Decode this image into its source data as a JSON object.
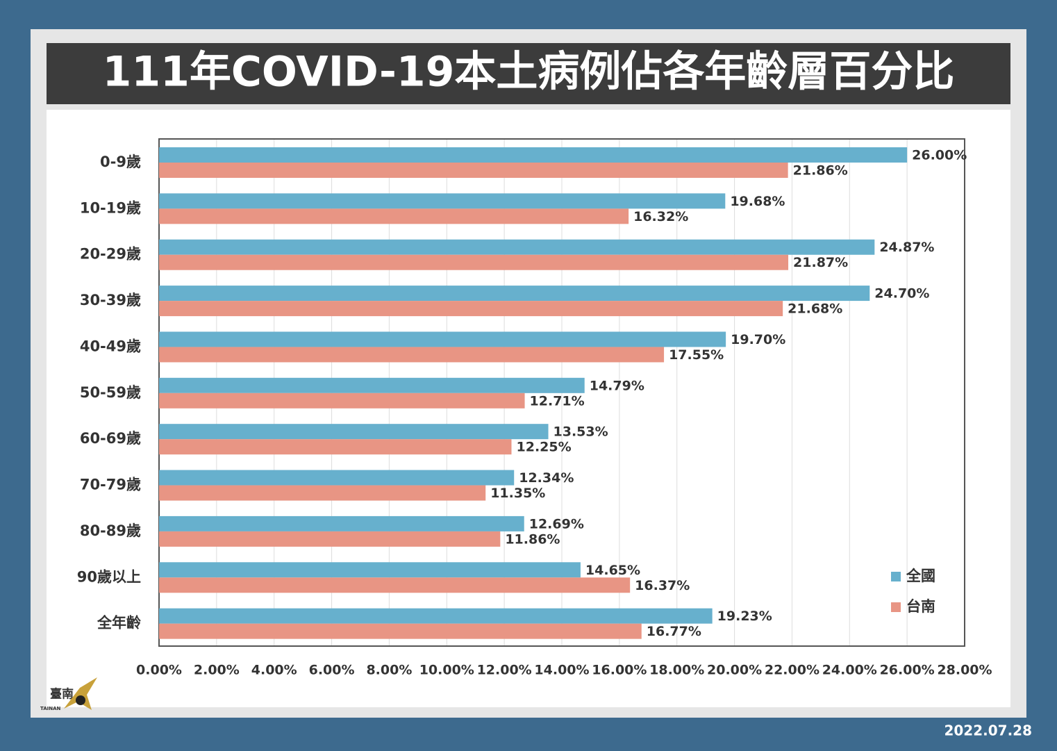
{
  "chart_data": {
    "type": "bar",
    "orientation": "horizontal",
    "title": "111年COVID-19本土病例佔各年齡層百分比",
    "categories": [
      "0-9歲",
      "10-19歲",
      "20-29歲",
      "30-39歲",
      "40-49歲",
      "50-59歲",
      "60-69歲",
      "70-79歲",
      "80-89歲",
      "90歲以上",
      "全年齡"
    ],
    "series": [
      {
        "name": "全國",
        "color": "#67b0cd",
        "values": [
          26.0,
          19.68,
          24.87,
          24.7,
          19.7,
          14.79,
          13.53,
          12.34,
          12.69,
          14.65,
          19.23
        ],
        "value_labels": [
          "26.00%",
          "19.68%",
          "24.87%",
          "24.70%",
          "19.70%",
          "14.79%",
          "13.53%",
          "12.34%",
          "12.69%",
          "14.65%",
          "19.23%"
        ]
      },
      {
        "name": "台南",
        "color": "#e89584",
        "values": [
          21.86,
          16.32,
          21.87,
          21.68,
          17.55,
          12.71,
          12.25,
          11.35,
          11.86,
          16.37,
          16.77
        ],
        "value_labels": [
          "21.86%",
          "16.32%",
          "21.87%",
          "21.68%",
          "17.55%",
          "12.71%",
          "12.25%",
          "11.35%",
          "11.86%",
          "16.37%",
          "16.77%"
        ]
      }
    ],
    "xlim": [
      0,
      28
    ],
    "xticks": [
      {
        "value": 0,
        "label": "0.00%"
      },
      {
        "value": 2,
        "label": "2.00%"
      },
      {
        "value": 4,
        "label": "4.00%"
      },
      {
        "value": 6,
        "label": "6.00%"
      },
      {
        "value": 8,
        "label": "8.00%"
      },
      {
        "value": 10,
        "label": "10.00%"
      },
      {
        "value": 12,
        "label": "12.00%"
      },
      {
        "value": 14,
        "label": "14.00%"
      },
      {
        "value": 16,
        "label": "16.00%"
      },
      {
        "value": 18,
        "label": "18.00%"
      },
      {
        "value": 20,
        "label": "20.00%"
      },
      {
        "value": 22,
        "label": "22.00%"
      },
      {
        "value": 24,
        "label": "24.00%"
      },
      {
        "value": 26,
        "label": "26.00%"
      },
      {
        "value": 28,
        "label": "28.00%"
      }
    ],
    "grid": true,
    "legend": "lower right"
  },
  "logo": {
    "text": "臺南",
    "subtext": "TAINAN"
  },
  "date": "2022.07.28"
}
